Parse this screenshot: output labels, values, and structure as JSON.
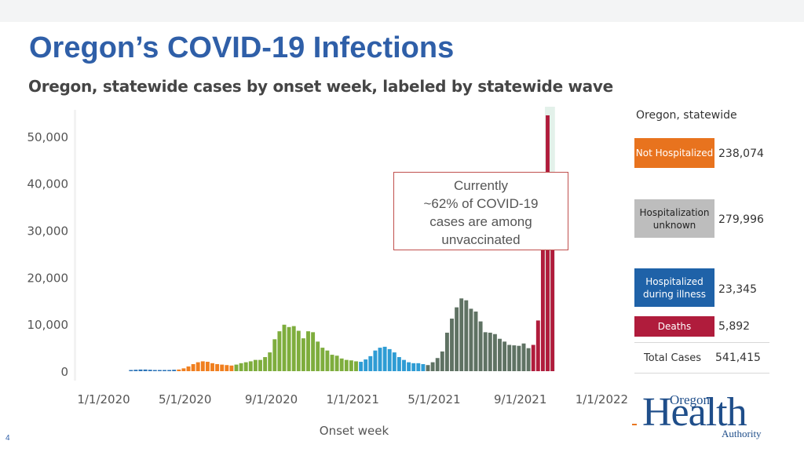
{
  "page": {
    "title": "Oregon’s COVID-19 Infections",
    "page_number": "4"
  },
  "callout": {
    "lines": [
      "Currently",
      "~62% of COVID-19",
      "cases are among",
      "unvaccinated"
    ]
  },
  "legend": {
    "heading": "Oregon, statewide",
    "items": [
      {
        "label": "Not Hospitalized",
        "value": "238,074",
        "color": "#e8731e"
      },
      {
        "label": "Hospitalization unknown",
        "value": "279,996",
        "color": "#bdbdbd"
      },
      {
        "label": "Hospitalized during illness",
        "value": "23,345",
        "color": "#1f62a8"
      },
      {
        "label": "Deaths",
        "value": "5,892",
        "color": "#b01c3c"
      }
    ],
    "total_label": "Total Cases",
    "total_value": "541,415"
  },
  "logo": {
    "small": "Oregon",
    "big": "Health",
    "sub": "Authority"
  },
  "chart_data": {
    "type": "bar",
    "title": "Oregon, statewide cases by onset week, labeled by statewide wave",
    "xlabel": "Onset week",
    "ylabel": "",
    "ylim": [
      0,
      55000
    ],
    "yticks": [
      0,
      10000,
      20000,
      30000,
      40000,
      50000
    ],
    "ytick_labels": [
      "0",
      "10,000",
      "20,000",
      "30,000",
      "40,000",
      "50,000"
    ],
    "xtick_labels": [
      "1/1/2020",
      "5/1/2020",
      "9/1/2020",
      "1/1/2021",
      "5/1/2021",
      "9/1/2021",
      "1/1/2022"
    ],
    "xtick_weeks": [
      0,
      17,
      35,
      52,
      69,
      87,
      104
    ],
    "wave_colors": {
      "wave1": "#2a73b8",
      "wave2": "#f07f1f",
      "wave3": "#7ead3d",
      "wave4": "#2e9cd4",
      "wave5": "#5f7263",
      "wave6": "#b01c3c"
    },
    "series": [
      {
        "name": "wave1",
        "week_start": 8,
        "values": [
          150,
          300,
          350,
          350,
          300,
          250,
          250,
          250,
          250,
          300
        ]
      },
      {
        "name": "wave2",
        "week_start": 18,
        "values": [
          350,
          600,
          1000,
          1500,
          1900,
          2100,
          2000,
          1700,
          1500,
          1400,
          1300,
          1200
        ]
      },
      {
        "name": "wave3",
        "week_start": 30,
        "values": [
          1400,
          1700,
          1900,
          2100,
          2400,
          2400,
          3000,
          4000,
          6800,
          8500,
          9900,
          9400,
          9600,
          8600,
          7000,
          8500,
          8300,
          6300,
          5000,
          4400,
          3500,
          3300,
          2700,
          2400,
          2300,
          2100
        ]
      },
      {
        "name": "wave4",
        "week_start": 56,
        "values": [
          2000,
          2500,
          3200,
          4400,
          5000,
          5200,
          4700,
          4000,
          3000,
          2400,
          1900,
          1700,
          1700,
          1500
        ]
      },
      {
        "name": "wave5",
        "week_start": 70,
        "values": [
          1300,
          1900,
          2800,
          4200,
          8200,
          11200,
          13600,
          15500,
          15100,
          13300,
          12700,
          10600,
          8300,
          8200,
          7900,
          6900,
          6300,
          5600,
          5500,
          5400,
          5900,
          4900
        ]
      },
      {
        "name": "wave6",
        "week_start": 92,
        "values": [
          5600,
          10800,
          29500,
          54500,
          37500
        ]
      }
    ]
  }
}
